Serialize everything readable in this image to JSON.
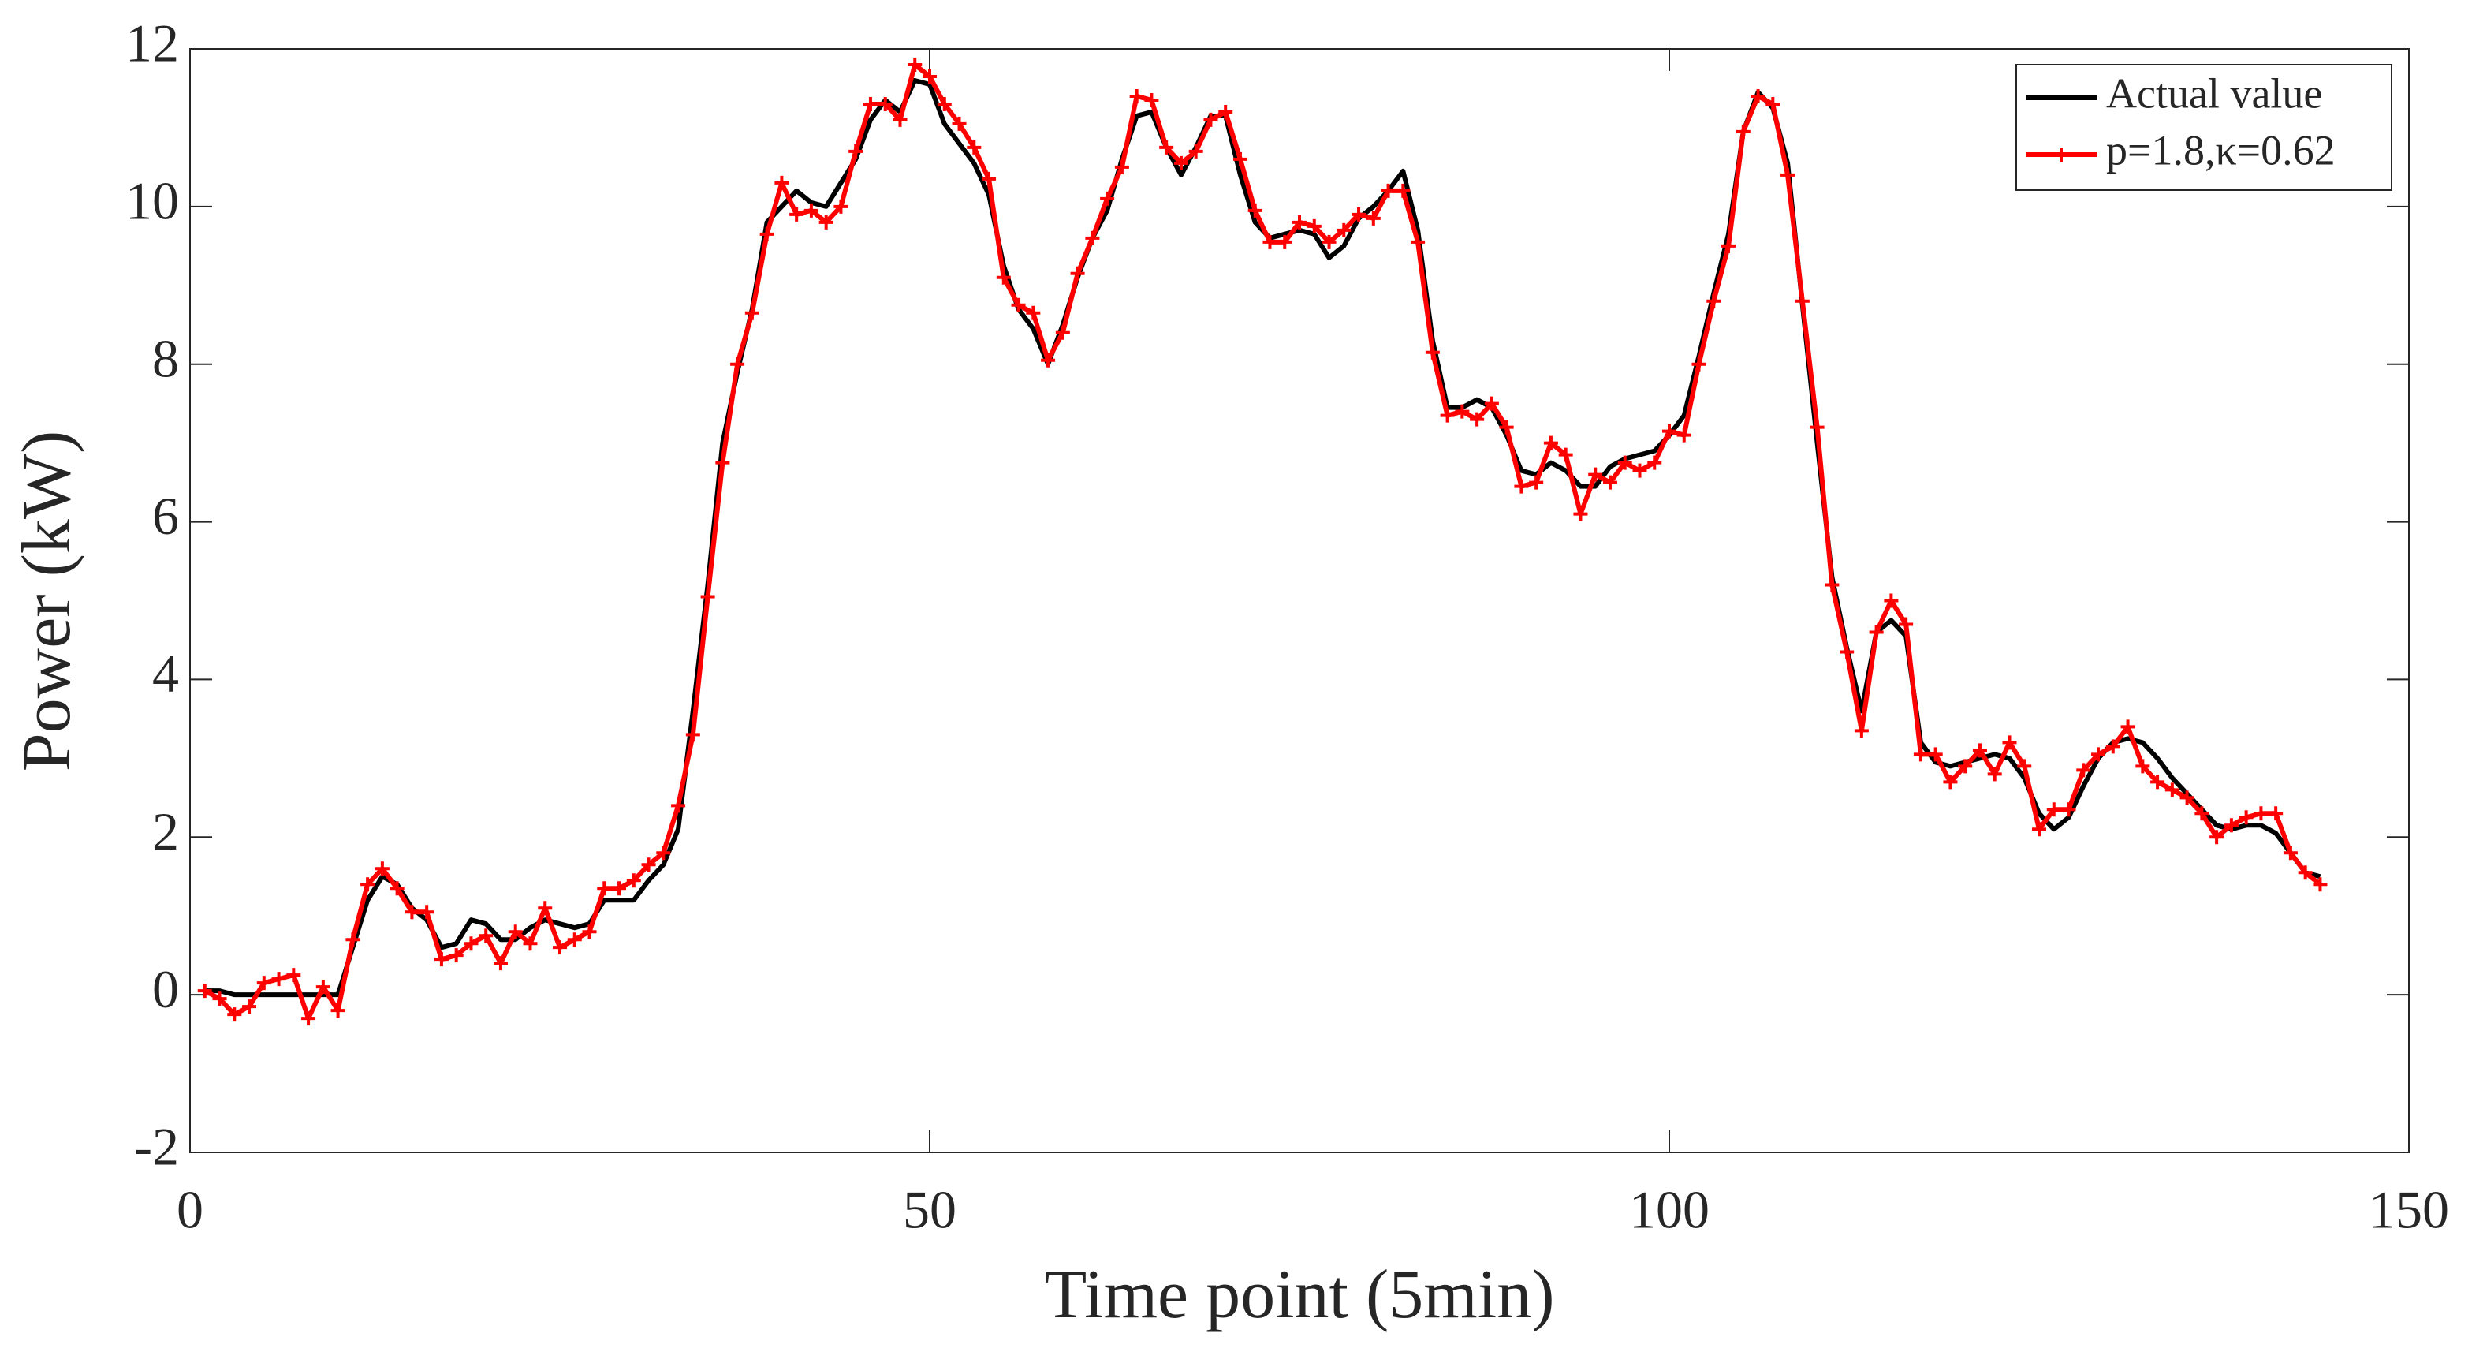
{
  "chart_data": {
    "type": "line",
    "xlabel": "Time point (5min)",
    "ylabel": "Power (kW)",
    "xlim": [
      0,
      150
    ],
    "xticks": [
      0,
      50,
      100,
      150
    ],
    "ylim": [
      -2,
      12
    ],
    "yticks": [
      -2,
      0,
      2,
      4,
      6,
      8,
      10,
      12
    ],
    "legend_position": "upper right",
    "x": [
      1,
      2,
      3,
      4,
      5,
      6,
      7,
      8,
      9,
      10,
      11,
      12,
      13,
      14,
      15,
      16,
      17,
      18,
      19,
      20,
      21,
      22,
      23,
      24,
      25,
      26,
      27,
      28,
      29,
      30,
      31,
      32,
      33,
      34,
      35,
      36,
      37,
      38,
      39,
      40,
      41,
      42,
      43,
      44,
      45,
      46,
      47,
      48,
      49,
      50,
      51,
      52,
      53,
      54,
      55,
      56,
      57,
      58,
      59,
      60,
      61,
      62,
      63,
      64,
      65,
      66,
      67,
      68,
      69,
      70,
      71,
      72,
      73,
      74,
      75,
      76,
      77,
      78,
      79,
      80,
      81,
      82,
      83,
      84,
      85,
      86,
      87,
      88,
      89,
      90,
      91,
      92,
      93,
      94,
      95,
      96,
      97,
      98,
      99,
      100,
      101,
      102,
      103,
      104,
      105,
      106,
      107,
      108,
      109,
      110,
      111,
      112,
      113,
      114,
      115,
      116,
      117,
      118,
      119,
      120,
      121,
      122,
      123,
      124,
      125,
      126,
      127,
      128,
      129,
      130,
      131,
      132,
      133,
      134,
      135,
      136,
      137,
      138,
      139,
      140,
      141,
      142,
      143,
      144
    ],
    "series": [
      {
        "name": "Actual value",
        "color": "#000000",
        "marker": false,
        "values": [
          0.05,
          0.05,
          0,
          0,
          0,
          0,
          0,
          0,
          0,
          0,
          0.6,
          1.2,
          1.5,
          1.4,
          1.1,
          0.95,
          0.6,
          0.65,
          0.95,
          0.9,
          0.7,
          0.7,
          0.85,
          0.95,
          0.9,
          0.85,
          0.9,
          1.2,
          1.2,
          1.2,
          1.45,
          1.65,
          2.1,
          3.6,
          5.2,
          7.0,
          7.9,
          8.7,
          9.8,
          10.0,
          10.2,
          10.05,
          10.0,
          10.3,
          10.6,
          11.1,
          11.35,
          11.2,
          11.6,
          11.55,
          11.05,
          10.8,
          10.55,
          10.15,
          9.25,
          8.7,
          8.45,
          8.0,
          8.5,
          9.1,
          9.6,
          9.95,
          10.6,
          11.15,
          11.2,
          10.75,
          10.4,
          10.75,
          11.15,
          11.15,
          10.4,
          9.8,
          9.6,
          9.65,
          9.7,
          9.65,
          9.35,
          9.5,
          9.85,
          10.0,
          10.2,
          10.45,
          9.7,
          8.3,
          7.45,
          7.45,
          7.55,
          7.45,
          7.1,
          6.65,
          6.6,
          6.75,
          6.65,
          6.45,
          6.45,
          6.7,
          6.8,
          6.85,
          6.9,
          7.1,
          7.35,
          8.1,
          8.9,
          9.65,
          10.95,
          11.45,
          11.25,
          10.55,
          8.75,
          7.0,
          5.3,
          4.4,
          3.6,
          4.6,
          4.75,
          4.55,
          3.2,
          2.95,
          2.9,
          2.95,
          3.0,
          3.05,
          3.0,
          2.75,
          2.3,
          2.1,
          2.25,
          2.65,
          3.0,
          3.2,
          3.25,
          3.2,
          3.0,
          2.75,
          2.55,
          2.35,
          2.15,
          2.1,
          2.15,
          2.15,
          2.05,
          1.8,
          1.55,
          1.5
        ]
      },
      {
        "name": "p=1.8,κ=0.62",
        "color": "#ff0000",
        "marker": true,
        "values": [
          0.05,
          -0.05,
          -0.25,
          -0.15,
          0.15,
          0.2,
          0.25,
          -0.3,
          0.1,
          -0.2,
          0.7,
          1.4,
          1.6,
          1.35,
          1.05,
          1.05,
          0.45,
          0.5,
          0.65,
          0.75,
          0.4,
          0.8,
          0.65,
          1.1,
          0.6,
          0.7,
          0.8,
          1.35,
          1.35,
          1.45,
          1.65,
          1.8,
          2.4,
          3.3,
          5.05,
          6.75,
          8.0,
          8.65,
          9.65,
          10.3,
          9.9,
          9.95,
          9.8,
          10.0,
          10.7,
          11.3,
          11.3,
          11.1,
          11.8,
          11.65,
          11.3,
          11.05,
          10.75,
          10.35,
          9.1,
          8.75,
          8.65,
          8.05,
          8.4,
          9.15,
          9.6,
          10.1,
          10.5,
          11.4,
          11.35,
          10.75,
          10.55,
          10.7,
          11.1,
          11.2,
          10.6,
          9.95,
          9.55,
          9.55,
          9.8,
          9.75,
          9.55,
          9.7,
          9.9,
          9.85,
          10.2,
          10.2,
          9.55,
          8.15,
          7.35,
          7.4,
          7.3,
          7.5,
          7.2,
          6.45,
          6.5,
          7.0,
          6.85,
          6.1,
          6.6,
          6.5,
          6.75,
          6.65,
          6.75,
          7.15,
          7.1,
          8.0,
          8.8,
          9.5,
          10.95,
          11.4,
          11.3,
          10.4,
          8.8,
          7.2,
          5.2,
          4.35,
          3.35,
          4.6,
          5.0,
          4.7,
          3.05,
          3.05,
          2.7,
          2.9,
          3.1,
          2.8,
          3.2,
          2.9,
          2.1,
          2.35,
          2.35,
          2.85,
          3.05,
          3.15,
          3.4,
          2.9,
          2.7,
          2.6,
          2.5,
          2.3,
          2.0,
          2.15,
          2.25,
          2.3,
          2.3,
          1.8,
          1.55,
          1.4
        ]
      }
    ]
  }
}
